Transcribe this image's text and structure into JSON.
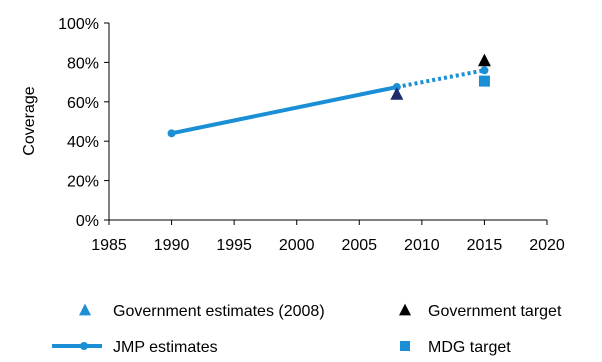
{
  "chart_data": {
    "type": "line",
    "title": "",
    "xlabel": "",
    "ylabel": "Coverage",
    "xlim": [
      1985,
      2020
    ],
    "ylim": [
      0,
      100
    ],
    "x_ticks": [
      "1985",
      "1990",
      "1995",
      "2000",
      "2005",
      "2010",
      "2015",
      "2020"
    ],
    "y_ticks": [
      "0%",
      "20%",
      "40%",
      "60%",
      "80%",
      "100%"
    ],
    "grid": false,
    "legend_position": "bottom",
    "series": [
      {
        "name": "JMP estimates",
        "kind": "line",
        "color": "#1a8fd6",
        "points": [
          [
            1990,
            44
          ],
          [
            2008,
            67.5
          ]
        ],
        "projection": [
          [
            2008,
            67.5
          ],
          [
            2015,
            76
          ]
        ]
      },
      {
        "name": "Government estimates (2008)",
        "kind": "triangle",
        "color": "#1f2a6b",
        "legend_color": "#1a8fd6",
        "points": [
          [
            2008,
            64
          ]
        ]
      },
      {
        "name": "Government target",
        "kind": "triangle",
        "color": "#000000",
        "points": [
          [
            2015,
            81
          ]
        ]
      },
      {
        "name": "MDG target",
        "kind": "square",
        "color": "#1a8fd6",
        "points": [
          [
            2015,
            70.5
          ]
        ]
      }
    ]
  }
}
